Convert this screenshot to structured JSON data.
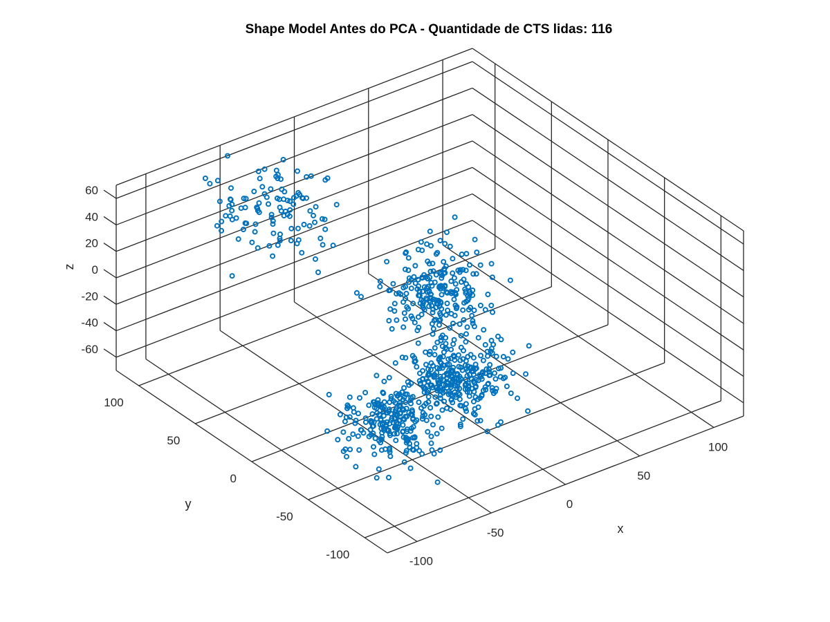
{
  "chart_data": {
    "type": "scatter3d",
    "title": "Shape Model Antes do PCA - Quantidade de CTS lidas: 116",
    "xlabel": "x",
    "ylabel": "y",
    "zlabel": "z",
    "xlim": [
      -120,
      120
    ],
    "ylim": [
      -120,
      120
    ],
    "zlim": [
      -70,
      70
    ],
    "xticks": [
      -100,
      -50,
      0,
      50,
      100
    ],
    "yticks": [
      -100,
      -50,
      0,
      50,
      100
    ],
    "zticks": [
      -60,
      -40,
      -20,
      0,
      20,
      40,
      60
    ],
    "xtick_labels": [
      "-100",
      "-50",
      "0",
      "50",
      "100"
    ],
    "ytick_labels": [
      "-100",
      "-50",
      "0",
      "50",
      "100"
    ],
    "ztick_labels": [
      "-60",
      "-40",
      "-20",
      "0",
      "20",
      "40",
      "60"
    ],
    "grid": true,
    "marker": "circle",
    "color": "#0072BD",
    "series": [
      {
        "clusters": [
          {
            "center": [
              -60,
              60,
              60
            ],
            "spread": [
              18,
              18,
              14
            ],
            "count": 110
          },
          {
            "center": [
              50,
              60,
              -50
            ],
            "spread": [
              14,
              14,
              14
            ],
            "count": 230
          },
          {
            "center": [
              -50,
              -30,
              -55
            ],
            "spread": [
              13,
              13,
              12
            ],
            "count": 230
          },
          {
            "center": [
              15,
              -5,
              -62
            ],
            "spread": [
              14,
              14,
              10
            ],
            "count": 280
          }
        ]
      }
    ]
  }
}
